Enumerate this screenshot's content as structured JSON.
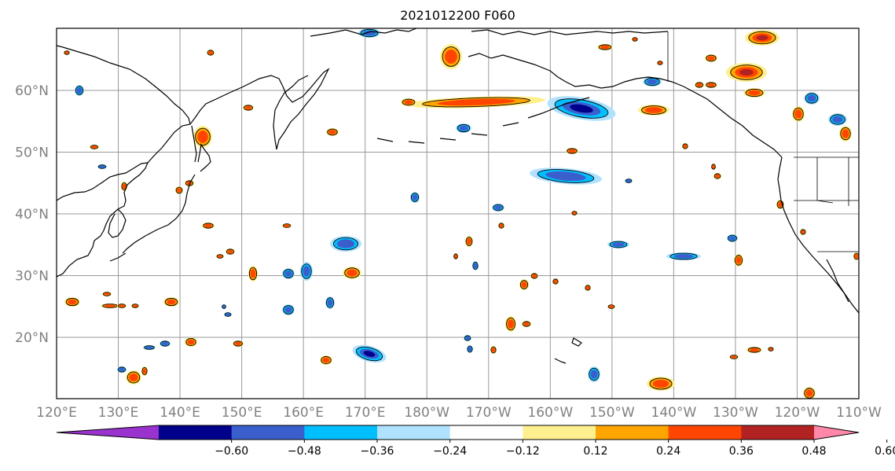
{
  "title": "2021012200 F060",
  "lat_labels": [
    "60°N",
    "50°N",
    "40°N",
    "30°N",
    "20°N"
  ],
  "lon_labels": [
    "120°E",
    "130°E",
    "140°E",
    "150°E",
    "160°E",
    "170°E",
    "180°W",
    "170°W",
    "160°W",
    "150°W",
    "140°W",
    "130°W",
    "120°W",
    "110°W"
  ],
  "colorbar": {
    "levels": [
      "−0.60",
      "−0.48",
      "−0.36",
      "−0.24",
      "−0.12",
      "0.12",
      "0.24",
      "0.36",
      "0.48",
      "0.60"
    ],
    "colors": [
      "#9a32cd",
      "#00008b",
      "#3a5fcd",
      "#00bfff",
      "#b0e2ff",
      "#ffffff",
      "#fff08f",
      "#ffa500",
      "#ff4500",
      "#b22222",
      "#ff88aa"
    ]
  },
  "map": {
    "extent": {
      "lon_min": 120,
      "lon_max": 250,
      "lat_min": 10,
      "lat_max": 70
    },
    "gridlines": true,
    "coastline_color": "#000000"
  }
}
